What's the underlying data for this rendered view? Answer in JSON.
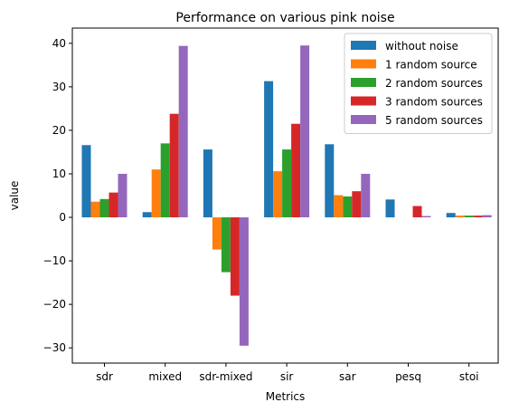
{
  "chart_data": {
    "type": "bar",
    "title": "Performance on various pink noise",
    "xlabel": "Metrics",
    "ylabel": "value",
    "categories": [
      "sdr",
      "mixed",
      "sdr-mixed",
      "sir",
      "sar",
      "pesq",
      "stoi"
    ],
    "ylim": [
      -33.5,
      43.5
    ],
    "yticks": [
      -30,
      -20,
      -10,
      0,
      10,
      20,
      30,
      40
    ],
    "ytick_labels": [
      "−30",
      "−20",
      "−10",
      "0",
      "10",
      "20",
      "30",
      "40"
    ],
    "legend_position": "top-right",
    "grid": false,
    "series": [
      {
        "name": "without noise",
        "color": "#1f77b4",
        "values": [
          16.6,
          1.2,
          15.6,
          31.3,
          16.8,
          4.1,
          1.0
        ]
      },
      {
        "name": "1 random source",
        "color": "#ff7f0e",
        "values": [
          3.6,
          11.0,
          -7.4,
          10.6,
          5.1,
          0.0,
          0.4
        ]
      },
      {
        "name": "2 random sources",
        "color": "#2ca02c",
        "values": [
          4.2,
          17.0,
          -12.6,
          15.6,
          4.8,
          0.0,
          0.4
        ]
      },
      {
        "name": "3 random sources",
        "color": "#d62728",
        "values": [
          5.7,
          23.8,
          -18.0,
          21.5,
          6.0,
          2.6,
          0.4
        ]
      },
      {
        "name": "5 random sources",
        "color": "#9467bd",
        "values": [
          10.0,
          39.4,
          -29.5,
          39.5,
          10.0,
          0.3,
          0.5
        ]
      }
    ]
  }
}
